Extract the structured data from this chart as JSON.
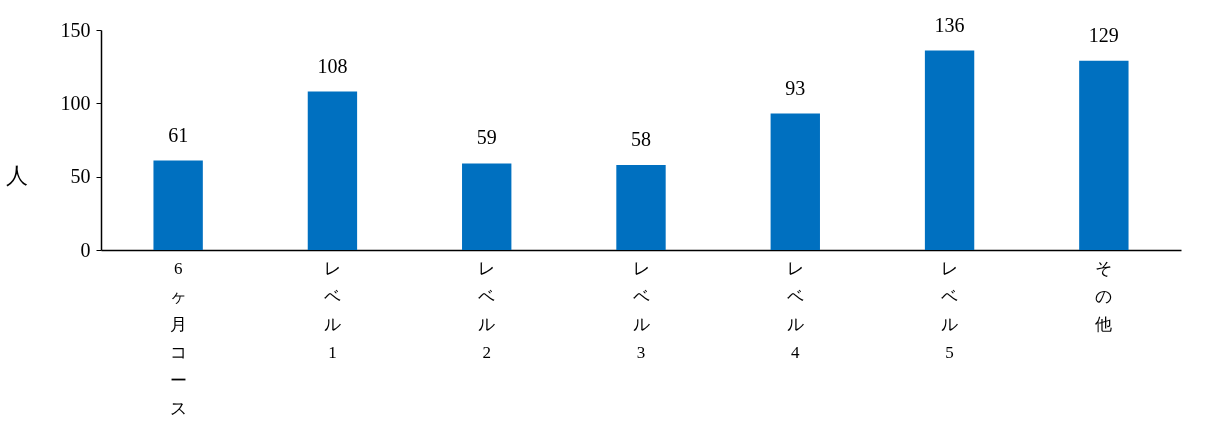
{
  "chart_data": {
    "type": "bar",
    "ylabel": "人",
    "categories": [
      "6ヶ月コース",
      "レベル1",
      "レベル2",
      "レベル3",
      "レベル4",
      "レベル5",
      "その他"
    ],
    "values": [
      61,
      108,
      59,
      58,
      93,
      136,
      129
    ],
    "color": "#0070c0",
    "ylim": [
      0,
      150
    ],
    "yticks": [
      0,
      50,
      100,
      150
    ],
    "data_labels": true
  }
}
